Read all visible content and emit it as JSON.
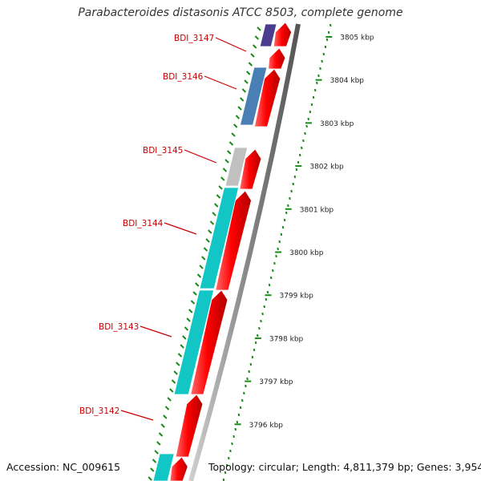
{
  "title": "Parabacteroides distasonis ATCC 8503, complete genome",
  "footer": {
    "accession": "Accession: NC_009615",
    "topology": "Topology: circular; Length: 4,811,379 bp; Genes: 3,954"
  },
  "axis": {
    "unit": "kbp",
    "ticks": [
      "3805 kbp",
      "3804 kbp",
      "3803 kbp",
      "3802 kbp",
      "3801 kbp",
      "3800 kbp",
      "3799 kbp",
      "3798 kbp",
      "3797 kbp",
      "3796 kbp"
    ]
  },
  "genes": [
    {
      "label": "BDI_3147",
      "color": "#4a3d8f"
    },
    {
      "label": "BDI_3146",
      "color": "#4a7fb5"
    },
    {
      "label": "BDI_3145",
      "color": "#c0c0c0"
    },
    {
      "label": "BDI_3144",
      "color": "#12c6c6"
    },
    {
      "label": "BDI_3143",
      "color": "#12c6c6"
    },
    {
      "label": "BDI_3142",
      "color": "#12c6c6"
    }
  ],
  "colors": {
    "cds_arrow": "#ff0000",
    "gene_label": "#cc0000",
    "tick": "#1a8a1a",
    "backbone": "#8a8a8a"
  }
}
